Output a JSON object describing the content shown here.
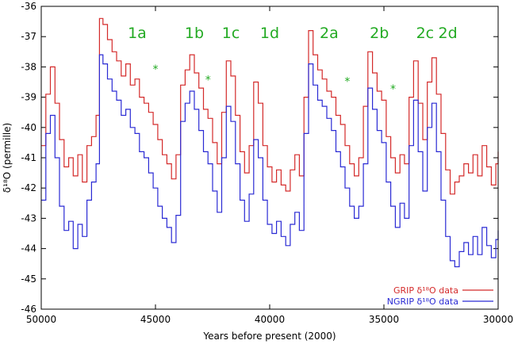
{
  "chart_data": {
    "type": "line",
    "xlabel": "Years before present (2000)",
    "ylabel": "δ¹⁸O (permille)",
    "xlim": [
      50000,
      30000
    ],
    "ylim": [
      -46,
      -36
    ],
    "x_reversed": true,
    "xticks": [
      50000,
      45000,
      40000,
      35000,
      30000
    ],
    "yticks": [
      -46,
      -45,
      -44,
      -43,
      -42,
      -41,
      -40,
      -39,
      -38,
      -37,
      -36
    ],
    "grid": false,
    "legend_position": "bottom-right",
    "annotations": [
      {
        "text": "1a",
        "x": 45800,
        "y": -37.05,
        "color": "#22aa22"
      },
      {
        "text": "1b",
        "x": 43300,
        "y": -37.05,
        "color": "#22aa22"
      },
      {
        "text": "1c",
        "x": 41700,
        "y": -37.05,
        "color": "#22aa22"
      },
      {
        "text": "1d",
        "x": 40000,
        "y": -37.05,
        "color": "#22aa22"
      },
      {
        "text": "2a",
        "x": 37400,
        "y": -37.05,
        "color": "#22aa22"
      },
      {
        "text": "2b",
        "x": 35200,
        "y": -37.05,
        "color": "#22aa22"
      },
      {
        "text": "2c",
        "x": 33200,
        "y": -37.05,
        "color": "#22aa22"
      },
      {
        "text": "2d",
        "x": 32200,
        "y": -37.05,
        "color": "#22aa22"
      },
      {
        "text": "*",
        "x": 45000,
        "y": -38.2,
        "color": "#22aa22"
      },
      {
        "text": "*",
        "x": 42700,
        "y": -38.55,
        "color": "#22aa22"
      },
      {
        "text": "*",
        "x": 36600,
        "y": -38.6,
        "color": "#22aa22"
      },
      {
        "text": "*",
        "x": 34600,
        "y": -38.85,
        "color": "#22aa22"
      }
    ],
    "series": [
      {
        "name": "GRIP δ¹⁸O data",
        "color": "#d42a2a",
        "x": [
          50000,
          49800,
          49600,
          49400,
          49200,
          49000,
          48800,
          48600,
          48400,
          48200,
          48000,
          47800,
          47600,
          47450,
          47300,
          47100,
          46900,
          46700,
          46500,
          46300,
          46100,
          45900,
          45700,
          45500,
          45300,
          45100,
          44900,
          44700,
          44500,
          44300,
          44100,
          43900,
          43700,
          43500,
          43300,
          43100,
          42900,
          42700,
          42500,
          42300,
          42100,
          41900,
          41700,
          41500,
          41300,
          41100,
          40900,
          40700,
          40500,
          40300,
          40100,
          39900,
          39700,
          39500,
          39300,
          39100,
          38900,
          38700,
          38500,
          38300,
          38100,
          37900,
          37700,
          37500,
          37300,
          37100,
          36900,
          36700,
          36500,
          36300,
          36100,
          35900,
          35700,
          35500,
          35300,
          35100,
          34900,
          34700,
          34500,
          34300,
          34100,
          33900,
          33700,
          33500,
          33300,
          33100,
          32900,
          32700,
          32500,
          32300,
          32100,
          31900,
          31700,
          31500,
          31300,
          31100,
          30900,
          30700,
          30500,
          30300,
          30100,
          30000
        ],
        "values": [
          -40.6,
          -38.9,
          -38.0,
          -39.2,
          -40.4,
          -41.3,
          -41.0,
          -41.6,
          -40.9,
          -41.8,
          -40.6,
          -40.3,
          -39.6,
          -36.4,
          -36.6,
          -37.1,
          -37.5,
          -37.8,
          -38.3,
          -37.9,
          -38.6,
          -38.4,
          -39.0,
          -39.2,
          -39.5,
          -39.9,
          -40.4,
          -40.9,
          -41.2,
          -41.7,
          -40.9,
          -38.6,
          -38.1,
          -37.6,
          -38.2,
          -38.7,
          -39.4,
          -39.7,
          -40.5,
          -41.2,
          -39.5,
          -37.8,
          -38.3,
          -39.6,
          -40.8,
          -41.5,
          -40.6,
          -38.5,
          -39.2,
          -40.6,
          -41.3,
          -41.8,
          -41.4,
          -41.9,
          -42.1,
          -41.4,
          -40.9,
          -41.6,
          -39.0,
          -36.8,
          -37.6,
          -38.1,
          -38.4,
          -38.8,
          -39.0,
          -39.6,
          -39.9,
          -40.6,
          -41.2,
          -41.6,
          -41.0,
          -39.3,
          -37.5,
          -38.2,
          -38.8,
          -39.1,
          -40.3,
          -41.0,
          -41.5,
          -40.9,
          -41.2,
          -39.0,
          -37.8,
          -39.2,
          -40.4,
          -38.5,
          -37.7,
          -38.9,
          -40.2,
          -41.4,
          -42.2,
          -41.8,
          -41.6,
          -41.2,
          -41.5,
          -40.9,
          -41.6,
          -40.6,
          -41.3,
          -41.9,
          -41.2,
          -40.8
        ]
      },
      {
        "name": "NGRIP δ¹⁸O data",
        "color": "#2a2ad4",
        "x": [
          50000,
          49800,
          49600,
          49400,
          49200,
          49000,
          48800,
          48600,
          48400,
          48200,
          48000,
          47800,
          47600,
          47450,
          47300,
          47100,
          46900,
          46700,
          46500,
          46300,
          46100,
          45900,
          45700,
          45500,
          45300,
          45100,
          44900,
          44700,
          44500,
          44300,
          44100,
          43900,
          43700,
          43500,
          43300,
          43100,
          42900,
          42700,
          42500,
          42300,
          42100,
          41900,
          41700,
          41500,
          41300,
          41100,
          40900,
          40700,
          40500,
          40300,
          40100,
          39900,
          39700,
          39500,
          39300,
          39100,
          38900,
          38700,
          38500,
          38300,
          38100,
          37900,
          37700,
          37500,
          37300,
          37100,
          36900,
          36700,
          36500,
          36300,
          36100,
          35900,
          35700,
          35500,
          35300,
          35100,
          34900,
          34700,
          34500,
          34300,
          34100,
          33900,
          33700,
          33500,
          33300,
          33100,
          32900,
          32700,
          32500,
          32300,
          32100,
          31900,
          31700,
          31500,
          31300,
          31100,
          30900,
          30700,
          30500,
          30300,
          30100,
          30000
        ],
        "values": [
          -42.4,
          -40.2,
          -39.6,
          -41.0,
          -42.6,
          -43.4,
          -43.1,
          -44.0,
          -43.2,
          -43.6,
          -42.4,
          -41.8,
          -41.2,
          -37.6,
          -37.9,
          -38.4,
          -38.8,
          -39.1,
          -39.6,
          -39.4,
          -40.0,
          -40.2,
          -40.8,
          -41.0,
          -41.5,
          -42.0,
          -42.6,
          -43.0,
          -43.3,
          -43.8,
          -42.9,
          -39.8,
          -39.2,
          -38.8,
          -39.4,
          -40.1,
          -40.8,
          -41.2,
          -42.1,
          -42.8,
          -41.0,
          -39.3,
          -39.8,
          -41.2,
          -42.4,
          -43.1,
          -42.2,
          -40.4,
          -41.0,
          -42.4,
          -43.2,
          -43.5,
          -43.1,
          -43.6,
          -43.9,
          -43.2,
          -42.8,
          -43.4,
          -40.2,
          -37.9,
          -38.6,
          -39.1,
          -39.3,
          -39.7,
          -40.1,
          -40.8,
          -41.3,
          -42.0,
          -42.6,
          -43.0,
          -42.6,
          -41.2,
          -38.7,
          -39.4,
          -40.1,
          -40.5,
          -41.8,
          -42.6,
          -43.3,
          -42.5,
          -43.0,
          -40.6,
          -39.1,
          -40.8,
          -42.1,
          -40.0,
          -39.2,
          -40.8,
          -42.4,
          -43.6,
          -44.4,
          -44.6,
          -44.1,
          -43.8,
          -44.2,
          -43.6,
          -44.2,
          -43.3,
          -43.9,
          -44.3,
          -43.7,
          -43.4
        ]
      }
    ]
  }
}
